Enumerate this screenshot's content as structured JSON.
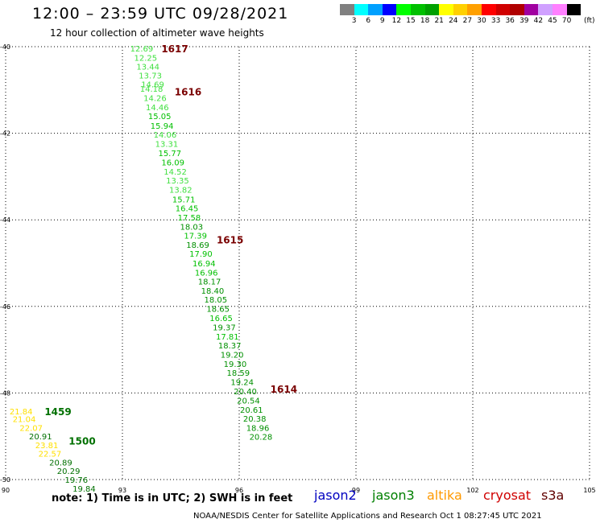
{
  "header": {
    "title": "12:00 – 23:59 UTC 09/28/2021",
    "subtitle": "12 hour collection of altimeter wave heights"
  },
  "colorbar": {
    "colors": [
      "#808080",
      "#00ffff",
      "#00a0ff",
      "#0000ff",
      "#00ff00",
      "#00c000",
      "#00a000",
      "#ffff00",
      "#ffd000",
      "#ffa000",
      "#ff0000",
      "#d00000",
      "#b00000",
      "#a000a0",
      "#d0a0ff",
      "#ff80ff",
      "#000000"
    ],
    "labels": [
      "3",
      "6",
      "9",
      "12",
      "15",
      "18",
      "21",
      "24",
      "27",
      "30",
      "33",
      "36",
      "39",
      "42",
      "45",
      "70"
    ],
    "unit": "(ft)"
  },
  "chart_data": {
    "type": "scatter",
    "title": "12:00 – 23:59 UTC 09/28/2021",
    "subtitle": "12 hour collection of altimeter wave heights",
    "xlim": [
      90,
      105
    ],
    "ylim": [
      -50,
      -40
    ],
    "x_ticks": [
      "90",
      "93",
      "96",
      "99",
      "102",
      "105"
    ],
    "y_ticks": [
      "-40",
      "-42",
      "-44",
      "-46",
      "-48",
      "-50"
    ],
    "grid": true,
    "series": [
      {
        "name": "jason3",
        "points": [
          {
            "x": 93.2,
            "y": -40.04,
            "v": "12.69"
          },
          {
            "x": 93.3,
            "y": -40.25,
            "v": "12.25"
          },
          {
            "x": 93.36,
            "y": -40.46,
            "v": "13.44"
          },
          {
            "x": 93.42,
            "y": -40.66,
            "v": "13.73"
          },
          {
            "x": 93.48,
            "y": -40.86,
            "v": "14.69"
          },
          {
            "x": 93.45,
            "y": -40.97,
            "v": "14.18"
          },
          {
            "x": 93.54,
            "y": -41.18,
            "v": "14.26"
          },
          {
            "x": 93.6,
            "y": -41.39,
            "v": "14.46"
          },
          {
            "x": 93.66,
            "y": -41.6,
            "v": "15.05"
          },
          {
            "x": 93.72,
            "y": -41.82,
            "v": "15.94"
          },
          {
            "x": 93.8,
            "y": -42.03,
            "v": "14.06"
          },
          {
            "x": 93.84,
            "y": -42.24,
            "v": "13.31"
          },
          {
            "x": 93.92,
            "y": -42.45,
            "v": "15.77"
          },
          {
            "x": 94.0,
            "y": -42.67,
            "v": "16.09"
          },
          {
            "x": 94.06,
            "y": -42.88,
            "v": "14.52"
          },
          {
            "x": 94.12,
            "y": -43.09,
            "v": "13.35"
          },
          {
            "x": 94.2,
            "y": -43.3,
            "v": "13.82"
          },
          {
            "x": 94.28,
            "y": -43.52,
            "v": "15.71"
          },
          {
            "x": 94.36,
            "y": -43.73,
            "v": "16.45"
          },
          {
            "x": 94.42,
            "y": -43.94,
            "v": "17.58"
          },
          {
            "x": 94.48,
            "y": -44.15,
            "v": "18.03"
          },
          {
            "x": 94.58,
            "y": -44.36,
            "v": "17.39"
          },
          {
            "x": 94.64,
            "y": -44.57,
            "v": "18.69"
          },
          {
            "x": 94.72,
            "y": -44.78,
            "v": "17.90"
          },
          {
            "x": 94.8,
            "y": -45.0,
            "v": "16.94"
          },
          {
            "x": 94.86,
            "y": -45.21,
            "v": "16.96"
          },
          {
            "x": 94.94,
            "y": -45.42,
            "v": "18.17"
          },
          {
            "x": 95.02,
            "y": -45.63,
            "v": "18.40"
          },
          {
            "x": 95.1,
            "y": -45.84,
            "v": "18.05"
          },
          {
            "x": 95.16,
            "y": -46.05,
            "v": "18.65"
          },
          {
            "x": 95.24,
            "y": -46.26,
            "v": "16.65"
          },
          {
            "x": 95.32,
            "y": -46.48,
            "v": "19.37"
          },
          {
            "x": 95.4,
            "y": -46.69,
            "v": "17.81"
          },
          {
            "x": 95.46,
            "y": -46.9,
            "v": "18.37"
          },
          {
            "x": 95.52,
            "y": -47.11,
            "v": "19.20"
          },
          {
            "x": 95.6,
            "y": -47.32,
            "v": "19.30"
          },
          {
            "x": 95.68,
            "y": -47.53,
            "v": "18.59"
          },
          {
            "x": 95.78,
            "y": -47.74,
            "v": "19.24"
          },
          {
            "x": 95.86,
            "y": -47.96,
            "v": "20.40"
          },
          {
            "x": 95.94,
            "y": -48.17,
            "v": "20.54"
          },
          {
            "x": 96.02,
            "y": -48.38,
            "v": "20.61"
          },
          {
            "x": 96.1,
            "y": -48.59,
            "v": "20.38"
          },
          {
            "x": 96.18,
            "y": -48.8,
            "v": "18.96"
          },
          {
            "x": 96.26,
            "y": -49.01,
            "v": "20.28"
          }
        ],
        "time_labels": [
          {
            "x": 94.0,
            "y": -40.04,
            "t": "1617"
          },
          {
            "x": 94.34,
            "y": -41.03,
            "t": "1616"
          },
          {
            "x": 95.42,
            "y": -44.45,
            "t": "1615"
          },
          {
            "x": 96.8,
            "y": -47.9,
            "t": "1614"
          }
        ]
      },
      {
        "name": "altika",
        "points": [
          {
            "x": 90.1,
            "y": -48.42,
            "v": "21.84"
          },
          {
            "x": 90.18,
            "y": -48.6,
            "v": "21.04"
          },
          {
            "x": 90.36,
            "y": -48.8,
            "v": "22.07"
          },
          {
            "x": 90.6,
            "y": -49.0,
            "v": "20.91"
          },
          {
            "x": 90.76,
            "y": -49.2,
            "v": "23.81"
          },
          {
            "x": 90.84,
            "y": -49.4,
            "v": "22.57"
          },
          {
            "x": 91.12,
            "y": -49.6,
            "v": "20.89"
          },
          {
            "x": 91.32,
            "y": -49.8,
            "v": "20.29"
          },
          {
            "x": 91.52,
            "y": -50.0,
            "v": "19.76"
          },
          {
            "x": 91.72,
            "y": -50.2,
            "v": "19.84"
          }
        ],
        "time_labels": [
          {
            "x": 91.0,
            "y": -48.42,
            "t": "1459"
          },
          {
            "x": 91.62,
            "y": -49.1,
            "t": "1500"
          }
        ]
      }
    ]
  },
  "footer": {
    "note": "note:  1) Time is in UTC;  2) SWH is in feet",
    "satellites": [
      {
        "name": "jason2",
        "color": "#0000c0"
      },
      {
        "name": "jason3",
        "color": "#008000"
      },
      {
        "name": "altika",
        "color": "#ff9900"
      },
      {
        "name": "cryosat",
        "color": "#d00000"
      },
      {
        "name": "s3a",
        "color": "#600000"
      }
    ],
    "credit": "NOAA/NESDIS Center for Satellite Applications and Research    Oct  1 08:27:45 UTC 2021"
  }
}
